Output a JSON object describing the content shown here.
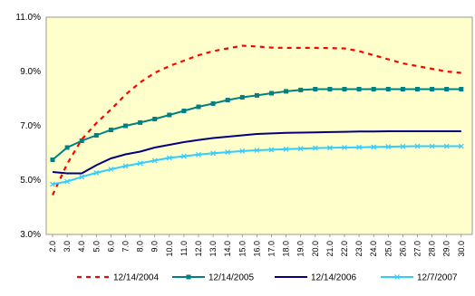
{
  "chart_data": {
    "type": "line",
    "title": "",
    "xlabel": "",
    "ylabel": "",
    "x": [
      "2.0",
      "3.0",
      "4.0",
      "5.0",
      "6.0",
      "7.0",
      "8.0",
      "9.0",
      "10.0",
      "11.0",
      "12.0",
      "13.0",
      "14.0",
      "15.0",
      "16.0",
      "17.0",
      "18.0",
      "19.0",
      "20.0",
      "21.0",
      "22.0",
      "23.0",
      "24.0",
      "25.0",
      "26.0",
      "27.0",
      "28.0",
      "29.0",
      "30.0"
    ],
    "ylim": [
      3.0,
      11.0
    ],
    "yticks": [
      "3.0%",
      "5.0%",
      "7.0%",
      "9.0%",
      "11.0%"
    ],
    "legend_position": "bottom",
    "plot_background": "#FFFFCC",
    "series": [
      {
        "name": "12/14/2004",
        "color": "#FF0000",
        "style": "dashed",
        "marker": "none",
        "values": [
          4.45,
          5.6,
          6.5,
          7.1,
          7.6,
          8.15,
          8.6,
          8.95,
          9.2,
          9.4,
          9.6,
          9.75,
          9.85,
          9.95,
          9.92,
          9.88,
          9.87,
          9.87,
          9.87,
          9.86,
          9.85,
          9.75,
          9.6,
          9.45,
          9.3,
          9.2,
          9.1,
          9.0,
          8.95
        ]
      },
      {
        "name": "12/14/2005",
        "color": "#008080",
        "style": "solid",
        "marker": "square",
        "values": [
          5.75,
          6.2,
          6.45,
          6.65,
          6.85,
          7.0,
          7.12,
          7.25,
          7.4,
          7.55,
          7.7,
          7.82,
          7.95,
          8.05,
          8.12,
          8.2,
          8.27,
          8.32,
          8.35,
          8.35,
          8.35,
          8.35,
          8.35,
          8.35,
          8.35,
          8.35,
          8.35,
          8.35,
          8.35
        ]
      },
      {
        "name": "12/14/2006",
        "color": "#000080",
        "style": "solid",
        "marker": "none",
        "values": [
          5.3,
          5.25,
          5.25,
          5.55,
          5.8,
          5.95,
          6.05,
          6.2,
          6.3,
          6.4,
          6.48,
          6.55,
          6.6,
          6.65,
          6.7,
          6.72,
          6.74,
          6.75,
          6.76,
          6.77,
          6.78,
          6.79,
          6.79,
          6.8,
          6.8,
          6.8,
          6.8,
          6.8,
          6.8
        ]
      },
      {
        "name": "12/7/2007",
        "color": "#33CCFF",
        "style": "solid",
        "marker": "x",
        "values": [
          4.85,
          4.95,
          5.12,
          5.27,
          5.4,
          5.52,
          5.62,
          5.72,
          5.82,
          5.88,
          5.94,
          5.99,
          6.03,
          6.07,
          6.1,
          6.12,
          6.14,
          6.16,
          6.18,
          6.19,
          6.2,
          6.21,
          6.22,
          6.23,
          6.24,
          6.25,
          6.25,
          6.25,
          6.25
        ]
      }
    ]
  }
}
